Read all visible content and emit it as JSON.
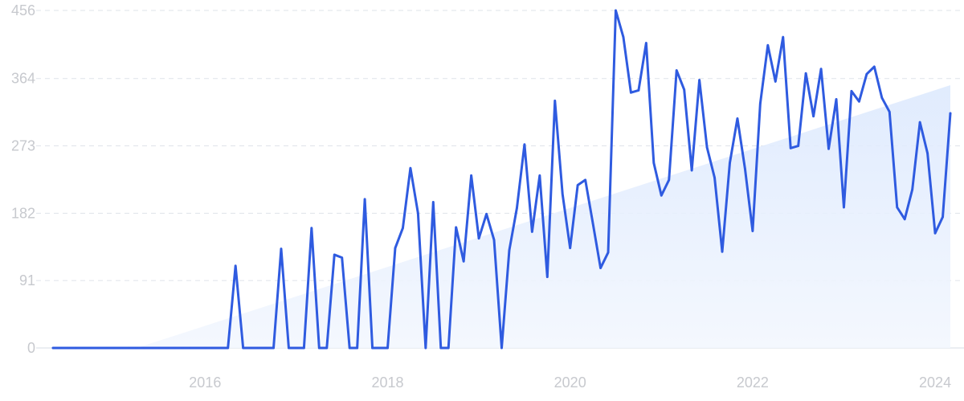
{
  "chart_data": {
    "type": "line",
    "title": "",
    "xlabel": "",
    "ylabel": "",
    "ylim": [
      0,
      456
    ],
    "xlim": [
      "2014-05",
      "2024-03"
    ],
    "y_ticks": [
      {
        "value": 0,
        "label": "0"
      },
      {
        "value": 91,
        "label": "91"
      },
      {
        "value": 182,
        "label": "182"
      },
      {
        "value": 273,
        "label": "273"
      },
      {
        "value": 364,
        "label": "364"
      },
      {
        "value": 456,
        "label": "456"
      }
    ],
    "x_ticks": [
      {
        "value": "2016-01",
        "label": "2016"
      },
      {
        "value": "2018-01",
        "label": "2018"
      },
      {
        "value": "2020-01",
        "label": "2020"
      },
      {
        "value": "2022-01",
        "label": "2022"
      },
      {
        "value": "2024-01",
        "label": "2024"
      }
    ],
    "grid": true,
    "colors": {
      "line": "#2f5be0",
      "trend_fill": "#e8f0fd",
      "grid": "#dfe3ea"
    },
    "series": [
      {
        "x": [
          "2014-05",
          "2014-06",
          "2014-07",
          "2014-08",
          "2014-09",
          "2014-10",
          "2014-11",
          "2014-12",
          "2015-01",
          "2015-02",
          "2015-03",
          "2015-04",
          "2015-05",
          "2015-06",
          "2015-07",
          "2015-08",
          "2015-09",
          "2015-10",
          "2015-11",
          "2015-12",
          "2016-01",
          "2016-02",
          "2016-03",
          "2016-04",
          "2016-05",
          "2016-06",
          "2016-07",
          "2016-08",
          "2016-09",
          "2016-10",
          "2016-11",
          "2016-12",
          "2017-01",
          "2017-02",
          "2017-03",
          "2017-04",
          "2017-05",
          "2017-06",
          "2017-07",
          "2017-08",
          "2017-09",
          "2017-10",
          "2017-11",
          "2017-12",
          "2018-01",
          "2018-02",
          "2018-03",
          "2018-04",
          "2018-05",
          "2018-06",
          "2018-07",
          "2018-08",
          "2018-09",
          "2018-10",
          "2018-11",
          "2018-12",
          "2019-01",
          "2019-02",
          "2019-03",
          "2019-04",
          "2019-05",
          "2019-06",
          "2019-07",
          "2019-08",
          "2019-09",
          "2019-10",
          "2019-11",
          "2019-12",
          "2020-01",
          "2020-02",
          "2020-03",
          "2020-04",
          "2020-05",
          "2020-06",
          "2020-07",
          "2020-08",
          "2020-09",
          "2020-10",
          "2020-11",
          "2020-12",
          "2021-01",
          "2021-02",
          "2021-03",
          "2021-04",
          "2021-05",
          "2021-06",
          "2021-07",
          "2021-08",
          "2021-09",
          "2021-10",
          "2021-11",
          "2021-12",
          "2022-01",
          "2022-02",
          "2022-03",
          "2022-04",
          "2022-05",
          "2022-06",
          "2022-07",
          "2022-08",
          "2022-09",
          "2022-10",
          "2022-11",
          "2022-12",
          "2023-01",
          "2023-02",
          "2023-03",
          "2023-04",
          "2023-05",
          "2023-06",
          "2023-07",
          "2023-08",
          "2023-09",
          "2023-10",
          "2023-11",
          "2023-12",
          "2024-01",
          "2024-02",
          "2024-03"
        ],
        "y": [
          0,
          0,
          0,
          0,
          0,
          0,
          0,
          0,
          0,
          0,
          0,
          0,
          0,
          0,
          0,
          0,
          0,
          0,
          0,
          0,
          0,
          0,
          0,
          0,
          111,
          0,
          0,
          0,
          0,
          0,
          134,
          0,
          0,
          0,
          162,
          0,
          0,
          126,
          122,
          0,
          0,
          201,
          0,
          0,
          0,
          135,
          162,
          243,
          182,
          0,
          197,
          0,
          0,
          163,
          117,
          233,
          148,
          181,
          146,
          0,
          132,
          189,
          275,
          157,
          233,
          96,
          334,
          208,
          135,
          220,
          227,
          168,
          108,
          129,
          456,
          420,
          345,
          348,
          412,
          250,
          206,
          227,
          375,
          349,
          240,
          362,
          271,
          230,
          130,
          250,
          310,
          242,
          158,
          330,
          409,
          360,
          420,
          270,
          273,
          371,
          313,
          377,
          269,
          336,
          190,
          347,
          333,
          370,
          380,
          338,
          319,
          190,
          174,
          214,
          305,
          263,
          155,
          177,
          317
        ]
      }
    ],
    "trend": {
      "x": [
        "2015-04",
        "2024-03"
      ],
      "y": [
        0,
        355
      ]
    }
  }
}
